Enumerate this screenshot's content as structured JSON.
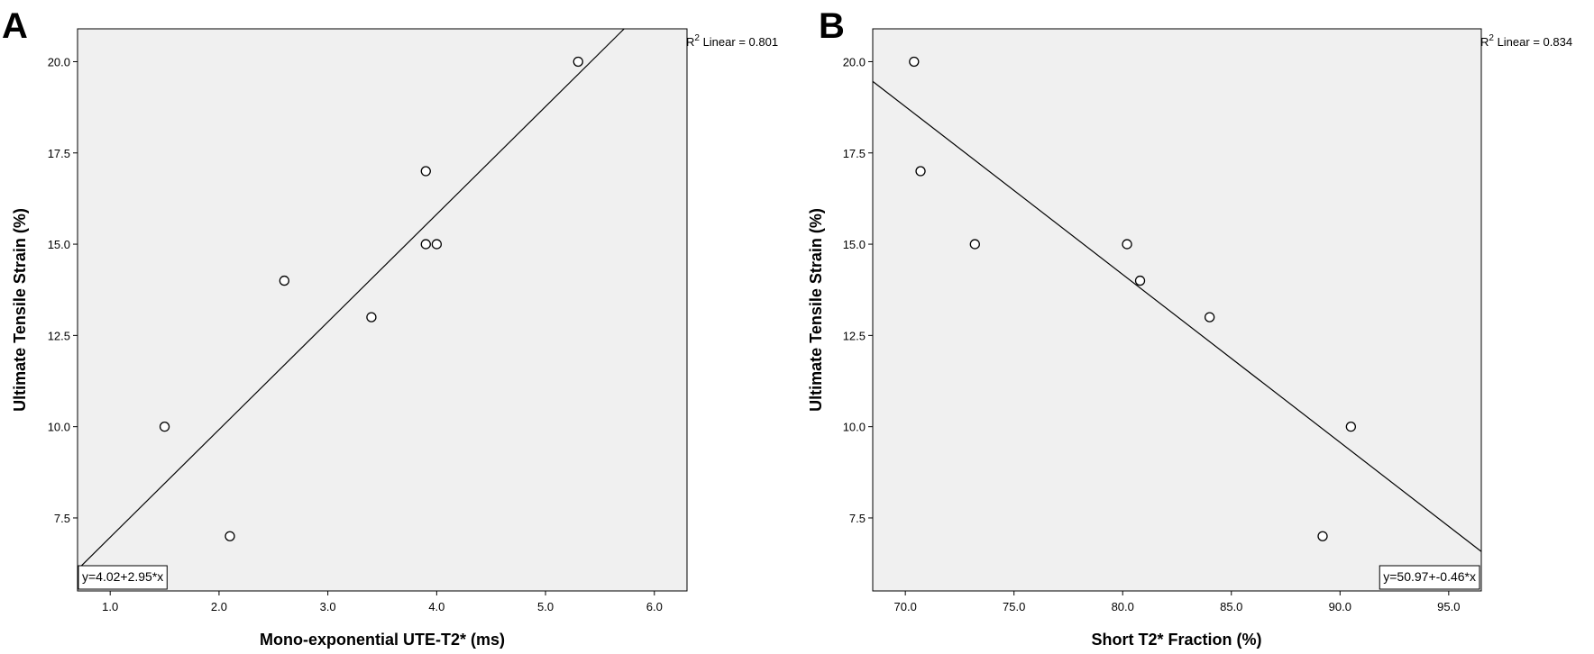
{
  "colors": {
    "plot_background": "#f0f0f0",
    "axis": "#000000",
    "point_fill": "#ffffff",
    "line": "#000000",
    "page": "#ffffff"
  },
  "chart_data": [
    {
      "type": "scatter",
      "panel_label": "A",
      "title": "",
      "xlabel": "Mono-exponential UTE-T2*  (ms)",
      "ylabel": "Ultimate Tensile Strain (%)",
      "xlim": [
        0.7,
        6.3
      ],
      "ylim": [
        5.5,
        20.9
      ],
      "xticks": [
        1.0,
        2.0,
        3.0,
        4.0,
        5.0,
        6.0
      ],
      "xtick_labels": [
        "1.0",
        "2.0",
        "3.0",
        "4.0",
        "5.0",
        "6.0"
      ],
      "yticks": [
        7.5,
        10.0,
        12.5,
        15.0,
        17.5,
        20.0
      ],
      "ytick_labels": [
        "7.5",
        "10.0",
        "12.5",
        "15.0",
        "17.5",
        "20.0"
      ],
      "points": [
        {
          "x": 1.5,
          "y": 10.0
        },
        {
          "x": 2.1,
          "y": 7.0
        },
        {
          "x": 2.6,
          "y": 14.0
        },
        {
          "x": 3.4,
          "y": 13.0
        },
        {
          "x": 3.9,
          "y": 17.0
        },
        {
          "x": 3.9,
          "y": 15.0
        },
        {
          "x": 4.0,
          "y": 15.0
        },
        {
          "x": 5.3,
          "y": 20.0
        }
      ],
      "fit_line": {
        "intercept": 4.02,
        "slope": 2.95
      },
      "equation_label": "y=4.02+2.95*x",
      "equation_position": "bottom-left",
      "r2_prefix": "R",
      "r2_sup": "2",
      "r2_rest": " Linear = 0.801",
      "grid": false
    },
    {
      "type": "scatter",
      "panel_label": "B",
      "title": "",
      "xlabel": "Short T2* Fraction (%)",
      "ylabel": "Ultimate Tensile Strain (%)",
      "xlim": [
        68.5,
        96.5
      ],
      "ylim": [
        5.5,
        20.9
      ],
      "xticks": [
        70.0,
        75.0,
        80.0,
        85.0,
        90.0,
        95.0
      ],
      "xtick_labels": [
        "70.0",
        "75.0",
        "80.0",
        "85.0",
        "90.0",
        "95.0"
      ],
      "yticks": [
        7.5,
        10.0,
        12.5,
        15.0,
        17.5,
        20.0
      ],
      "ytick_labels": [
        "7.5",
        "10.0",
        "12.5",
        "15.0",
        "17.5",
        "20.0"
      ],
      "points": [
        {
          "x": 70.4,
          "y": 20.0
        },
        {
          "x": 70.7,
          "y": 17.0
        },
        {
          "x": 73.2,
          "y": 15.0
        },
        {
          "x": 80.2,
          "y": 15.0
        },
        {
          "x": 80.8,
          "y": 14.0
        },
        {
          "x": 84.0,
          "y": 13.0
        },
        {
          "x": 89.2,
          "y": 7.0
        },
        {
          "x": 90.5,
          "y": 10.0
        }
      ],
      "fit_line": {
        "intercept": 50.97,
        "slope": -0.46
      },
      "equation_label": "y=50.97+-0.46*x",
      "equation_position": "bottom-right",
      "r2_prefix": "R",
      "r2_sup": "2",
      "r2_rest": " Linear = 0.834",
      "grid": false
    }
  ]
}
